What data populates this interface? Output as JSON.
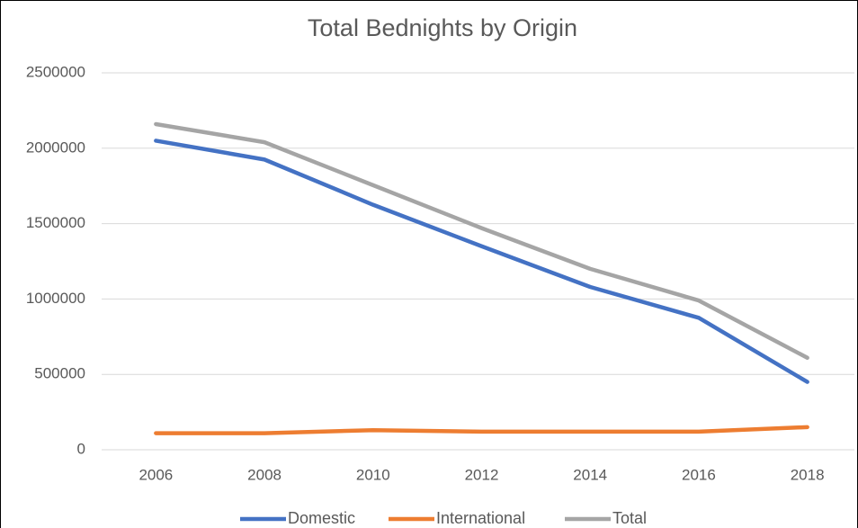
{
  "chart_data": {
    "type": "line",
    "title": "Total Bednights by Origin",
    "categories": [
      "2006",
      "2008",
      "2010",
      "2012",
      "2014",
      "2016",
      "2018"
    ],
    "series": [
      {
        "name": "Domestic",
        "color": "#4472c4",
        "values": [
          2050000,
          1925000,
          1625000,
          1350000,
          1080000,
          875000,
          450000
        ]
      },
      {
        "name": "International",
        "color": "#ed7d31",
        "values": [
          110000,
          110000,
          130000,
          120000,
          120000,
          120000,
          150000
        ]
      },
      {
        "name": "Total",
        "color": "#a5a5a5",
        "values": [
          2160000,
          2040000,
          1755000,
          1470000,
          1200000,
          990000,
          610000
        ]
      }
    ],
    "ylim": [
      0,
      2500000
    ],
    "yticks": [
      0,
      500000,
      1000000,
      1500000,
      2000000,
      2500000
    ],
    "grid": true,
    "legend": "bottom"
  }
}
